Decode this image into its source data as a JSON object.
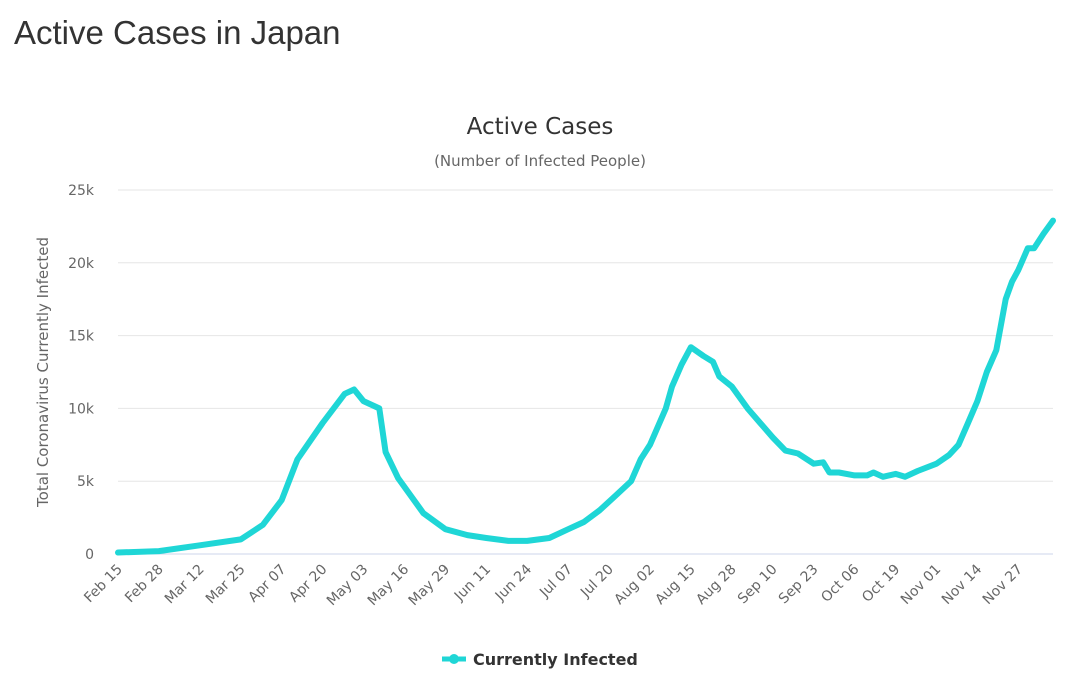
{
  "page": {
    "title": "Active Cases in Japan"
  },
  "chart_data": {
    "type": "line",
    "title": "Active Cases",
    "subtitle": "(Number of Infected People)",
    "ylabel": "Total Coronavirus Currently Infected",
    "xlabel": "",
    "ylim": [
      0,
      25000
    ],
    "yticks": [
      0,
      5000,
      10000,
      15000,
      20000,
      25000
    ],
    "ytick_labels": [
      "0",
      "5k",
      "10k",
      "15k",
      "20k",
      "25k"
    ],
    "xtick_labels": [
      "Feb 15",
      "Feb 28",
      "Mar 12",
      "Mar 25",
      "Apr 07",
      "Apr 20",
      "May 03",
      "May 16",
      "May 29",
      "Jun 11",
      "Jun 24",
      "Jul 07",
      "Jul 20",
      "Aug 02",
      "Aug 15",
      "Aug 28",
      "Sep 10",
      "Sep 23",
      "Oct 06",
      "Oct 19",
      "Nov 01",
      "Nov 14",
      "Nov 27"
    ],
    "grid": true,
    "legend": "bottom",
    "color": "#1fd6d6",
    "series": [
      {
        "name": "Currently Infected",
        "x": [
          "Feb 15",
          "Feb 28",
          "Mar 12",
          "Mar 25",
          "Apr 01",
          "Apr 07",
          "Apr 12",
          "Apr 20",
          "Apr 27",
          "Apr 30",
          "May 03",
          "May 08",
          "May 10",
          "May 14",
          "May 18",
          "May 22",
          "May 29",
          "Jun 05",
          "Jun 11",
          "Jun 18",
          "Jun 24",
          "Jul 01",
          "Jul 07",
          "Jul 12",
          "Jul 17",
          "Jul 22",
          "Jul 27",
          "Jul 30",
          "Aug 02",
          "Aug 07",
          "Aug 09",
          "Aug 12",
          "Aug 15",
          "Aug 19",
          "Aug 22",
          "Aug 24",
          "Aug 28",
          "Sep 02",
          "Sep 06",
          "Sep 10",
          "Sep 14",
          "Sep 18",
          "Sep 23",
          "Sep 26",
          "Sep 28",
          "Oct 01",
          "Oct 06",
          "Oct 10",
          "Oct 12",
          "Oct 15",
          "Oct 19",
          "Oct 22",
          "Oct 26",
          "Nov 01",
          "Nov 05",
          "Nov 08",
          "Nov 11",
          "Nov 14",
          "Nov 17",
          "Nov 20",
          "Nov 23",
          "Nov 25",
          "Nov 27",
          "Nov 30",
          "Dec 02",
          "Dec 05",
          "Dec 08"
        ],
        "values": [
          100,
          200,
          600,
          1000,
          2000,
          3700,
          6500,
          9000,
          11000,
          11300,
          10500,
          10000,
          7000,
          5200,
          4000,
          2800,
          1700,
          1300,
          1100,
          900,
          900,
          1100,
          1700,
          2200,
          3000,
          4000,
          5000,
          6500,
          7500,
          10000,
          11500,
          13000,
          14200,
          13600,
          13200,
          12200,
          11500,
          10000,
          9000,
          8000,
          7100,
          6900,
          6200,
          6300,
          5600,
          5600,
          5400,
          5400,
          5600,
          5300,
          5500,
          5300,
          5700,
          6200,
          6800,
          7500,
          9000,
          10500,
          12500,
          14000,
          17500,
          18700,
          19500,
          21000,
          21000,
          22000,
          22900
        ]
      }
    ]
  }
}
